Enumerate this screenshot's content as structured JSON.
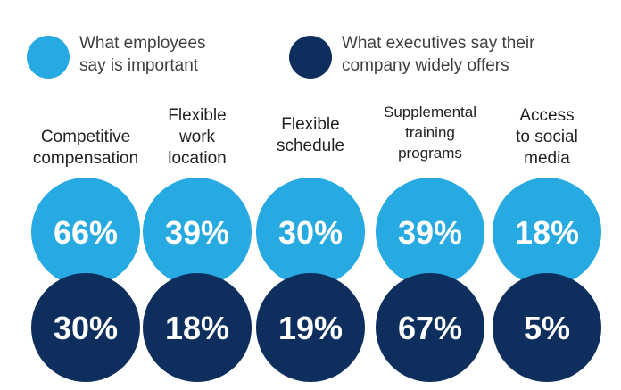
{
  "chart_data": {
    "type": "table",
    "categories": [
      [
        "Competitive",
        "compensation"
      ],
      [
        "Flexible",
        "work",
        "location"
      ],
      [
        "Flexible",
        "schedule"
      ],
      [
        "Supplemental",
        "training",
        "programs"
      ],
      [
        "Access",
        "to social",
        "media"
      ]
    ],
    "series": [
      {
        "name": [
          "What employees",
          "say is important"
        ],
        "color": "#27a9e1",
        "values": [
          66,
          39,
          30,
          39,
          18
        ]
      },
      {
        "name": [
          "What executives say their",
          "company widely offers"
        ],
        "color": "#0e2f5e",
        "values": [
          30,
          18,
          19,
          67,
          5
        ]
      }
    ],
    "value_suffix": "%"
  }
}
